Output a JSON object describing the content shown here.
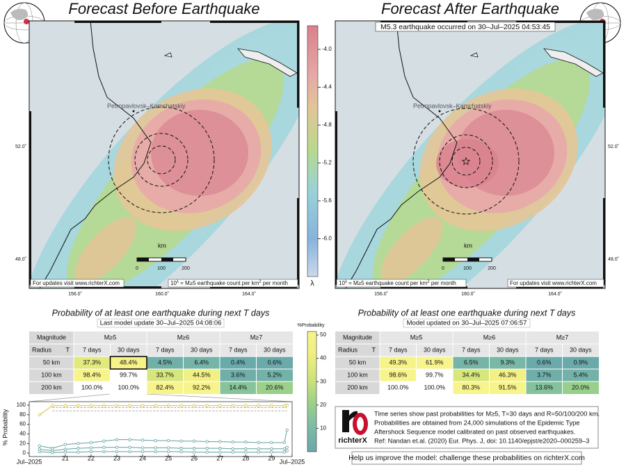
{
  "left": {
    "title": "Forecast Before Earthquake",
    "city": "Petropavlovsk–Kamchatskiy",
    "scale_unit": "km",
    "scale_labels": [
      "0",
      "100",
      "200"
    ],
    "lon_labels": [
      "156.0˚",
      "160.0˚",
      "164.0˚"
    ],
    "lat_labels": [
      "52.0˚",
      "48.0˚"
    ],
    "update_note": "For updates visit www.richterX.com",
    "legend_note": [
      "10",
      "λ",
      " = M≥5 earthquake count per km",
      "2",
      " per month"
    ]
  },
  "right": {
    "title": "Forecast After Earthquake",
    "subtitle": "M5.3 earthquake occurred on 30–Jul–2025 04:53:45",
    "city": "Petropavlovsk–Kamchatskiy",
    "scale_unit": "km",
    "scale_labels": [
      "0",
      "100",
      "200"
    ],
    "lon_labels": [
      "156.0˚",
      "160.0˚",
      "164.0˚"
    ],
    "lat_labels": [
      "52.0˚",
      "48.0˚"
    ],
    "update_note": "For updates visit www.richterX.com",
    "legend_note": [
      "10",
      "λ",
      " = M≥5 earthquake count per km",
      "2",
      " per month"
    ]
  },
  "colorbar": {
    "label": "λ",
    "lim": [
      -6.4,
      -3.75
    ],
    "ticks": [
      {
        "value": -4.0,
        "label": "-4.0"
      },
      {
        "value": -4.4,
        "label": "-4.4"
      },
      {
        "value": -4.8,
        "label": "-4.8"
      },
      {
        "value": -5.2,
        "label": "-5.2"
      },
      {
        "value": -5.6,
        "label": "-5.6"
      },
      {
        "value": -6.0,
        "label": "-6.0"
      }
    ]
  },
  "left_table": {
    "title": "Probability of at least one earthquake during next T days",
    "update": "Last model update 30–Jul–2025 04:08:06",
    "header": [
      "Magnitude",
      "M≥5",
      "M≥6",
      "M≥7"
    ],
    "subheader": [
      "Radius",
      "T",
      "7 days",
      "30 days",
      "7 days",
      "30 days",
      "7 days",
      "30 days"
    ],
    "rows": [
      {
        "radius": "50 km",
        "values": [
          37.3,
          48.4,
          4.5,
          6.4,
          0.4,
          0.6
        ],
        "labels": [
          "37.3%",
          "48.4%",
          "4.5%",
          "6.4%",
          "0.4%",
          "0.6%"
        ]
      },
      {
        "radius": "100 km",
        "values": [
          98.4,
          99.7,
          33.7,
          44.5,
          3.6,
          5.2
        ],
        "labels": [
          "98.4%",
          "99.7%",
          "33.7%",
          "44.5%",
          "3.6%",
          "5.2%"
        ]
      },
      {
        "radius": "200 km",
        "values": [
          100.0,
          100.0,
          82.4,
          92.2,
          14.4,
          20.6
        ],
        "labels": [
          "100.0%",
          "100.0%",
          "82.4%",
          "92.2%",
          "14.4%",
          "20.6%"
        ]
      }
    ]
  },
  "right_table": {
    "title": "Probability of at least one earthquake during next T days",
    "update": "Model updated on 30–Jul–2025 07:06:57",
    "header": [
      "Magnitude",
      "M≥5",
      "M≥6",
      "M≥7"
    ],
    "subheader": [
      "Radius",
      "T",
      "7 days",
      "30 days",
      "7 days",
      "30 days",
      "7 days",
      "30 days"
    ],
    "rows": [
      {
        "radius": "50 km",
        "values": [
          49.3,
          61.9,
          6.5,
          9.3,
          0.6,
          0.9
        ],
        "labels": [
          "49.3%",
          "61.9%",
          "6.5%",
          "9.3%",
          "0.6%",
          "0.9%"
        ]
      },
      {
        "radius": "100 km",
        "values": [
          98.6,
          99.7,
          34.4,
          46.3,
          3.7,
          5.4
        ],
        "labels": [
          "98.6%",
          "99.7%",
          "34.4%",
          "46.3%",
          "3.7%",
          "5.4%"
        ]
      },
      {
        "radius": "200 km",
        "values": [
          100.0,
          100.0,
          80.3,
          91.5,
          13.6,
          20.0
        ],
        "labels": [
          "100.0%",
          "100.0%",
          "80.3%",
          "91.5%",
          "13.6%",
          "20.0%"
        ]
      }
    ]
  },
  "prob_colorbar": {
    "label": "%Probability",
    "lim": [
      0,
      51.5
    ],
    "ticks": [
      10,
      20,
      30,
      40,
      50
    ]
  },
  "chart_data": {
    "type": "line",
    "ylabel": "% Probability",
    "x": [
      20,
      20.5,
      21,
      21.5,
      22,
      22.5,
      23,
      23.5,
      24,
      24.5,
      25,
      25.5,
      26,
      26.5,
      27,
      27.5,
      28,
      28.5,
      29,
      29.5,
      29.6
    ],
    "xlim": [
      19.6,
      29.8
    ],
    "xticks": [
      {
        "value": 19.6,
        "label": "Jul–2025"
      },
      21,
      22,
      23,
      24,
      25,
      26,
      27,
      28,
      29,
      {
        "value": 29.8,
        "label": "Jul–2025"
      }
    ],
    "ylim": [
      0,
      100
    ],
    "yticks": [
      0,
      20,
      40,
      60,
      80,
      100
    ],
    "series": [
      {
        "color": "#a8a8a8",
        "style": "dashed",
        "values": [
          null,
          95,
          95,
          95,
          95,
          95,
          95,
          95,
          95,
          95,
          95,
          95,
          95,
          95,
          95,
          95,
          95,
          95,
          95,
          95,
          95
        ]
      },
      {
        "color": "#a8a8a8",
        "style": "dashed",
        "values": [
          null,
          88,
          88,
          88,
          88,
          88,
          88,
          88,
          88,
          88,
          88,
          88,
          88,
          88,
          88,
          88,
          88,
          88,
          88,
          88,
          88
        ]
      },
      {
        "color": "#d9bd2e",
        "style": "markers",
        "values": [
          80,
          99,
          99,
          99,
          99,
          99,
          99,
          99,
          99,
          99,
          99,
          99,
          99,
          99,
          99,
          99,
          99,
          99,
          99,
          99,
          100
        ]
      },
      {
        "color": "#5f9f9f",
        "style": "markers",
        "values": [
          15,
          10,
          18,
          20,
          22,
          25,
          28,
          28,
          27,
          26,
          26,
          25,
          25,
          24,
          24,
          23,
          23,
          22,
          22,
          22,
          48
        ]
      },
      {
        "color": "#5f9f9f",
        "style": "markers",
        "values": [
          8,
          5,
          8,
          10,
          11,
          12,
          12,
          12,
          11,
          11,
          11,
          10,
          10,
          10,
          10,
          9,
          9,
          9,
          9,
          9,
          12
        ]
      },
      {
        "color": "#5f9f9f",
        "style": "markers",
        "values": [
          3,
          1,
          2,
          2,
          3,
          3,
          3,
          3,
          3,
          3,
          3,
          3,
          2,
          2,
          2,
          2,
          2,
          2,
          2,
          2,
          5
        ]
      }
    ]
  },
  "info": {
    "logo": "richterX",
    "lines": [
      "Time series show past probabilities for M≥5, T=30 days and R=50/100/200 km.",
      "Probabilities are obtained from 24,000 simulations of the Epidemic Type",
      "Aftershock Sequence model calibrated on past observed earthquakes.",
      "Ref: Nandan et.al. (2020) Eur. Phys. J, doi: 10.1140/epjst/e2020–000259–3"
    ]
  },
  "footer": "Help us improve the model: challenge these probabilities on richterX.com"
}
